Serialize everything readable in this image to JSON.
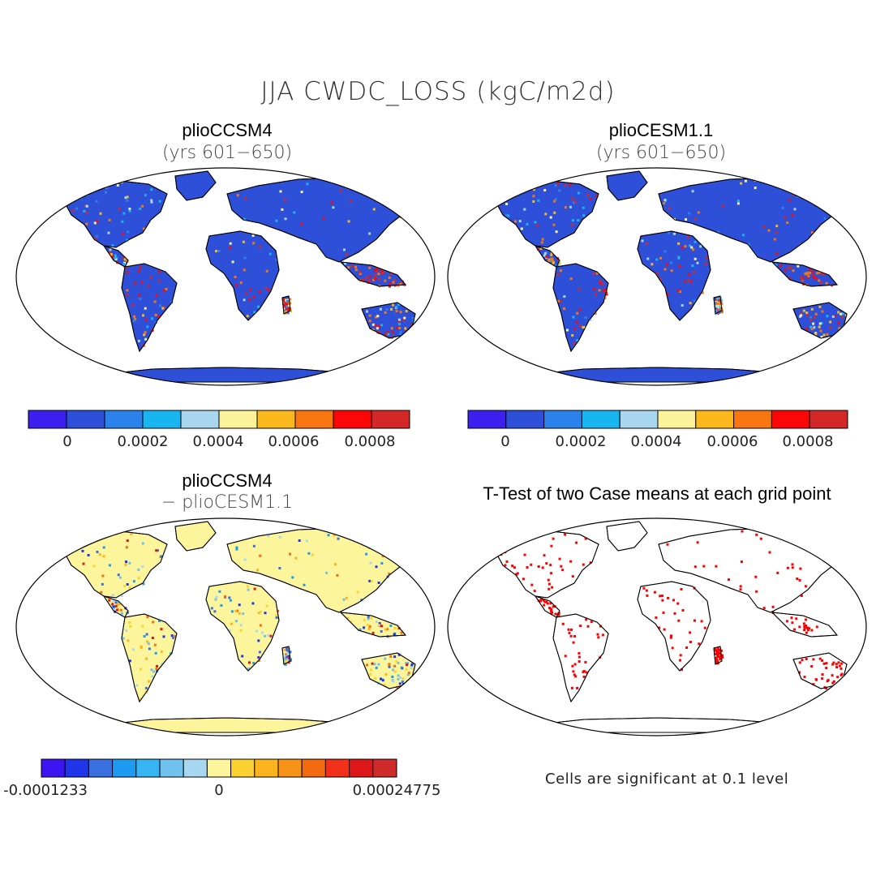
{
  "title": "JJA CWDC_LOSS (kgC/m2d)",
  "panels": {
    "a": {
      "title": "plioCCSM4",
      "subtitle": "(yrs 601−650)"
    },
    "b": {
      "title": "plioCESM1.1",
      "subtitle": "(yrs 601−650)"
    },
    "c": {
      "title": "plioCCSM4",
      "subtitle": "− plioCESM1.1"
    },
    "d": {
      "title": "T-Test of two Case means at each grid point"
    }
  },
  "colorbar_abs": {
    "colors": [
      "#3d1ff0",
      "#2e4fd8",
      "#2b82ea",
      "#17b6f0",
      "#a7d6ee",
      "#fbf29a",
      "#fbb81c",
      "#f7760f",
      "#fb0707",
      "#d42828"
    ],
    "ticks": [
      "0",
      "0.0002",
      "0.0004",
      "0.0006",
      "0.0008"
    ]
  },
  "colorbar_diff": {
    "colors": [
      "#3b16f2",
      "#1f35ea",
      "#3a6fe0",
      "#1d9bf0",
      "#37b5f2",
      "#6fc2ee",
      "#a8d8ef",
      "#fdf59c",
      "#fcd233",
      "#fbb41e",
      "#f79418",
      "#f46a10",
      "#f1311a",
      "#dd1717",
      "#cf2b2b"
    ],
    "ticks": [
      "-0.0001233",
      "0",
      "0.00024775"
    ]
  },
  "significance_note": "Cells are significant at 0.1 level",
  "palette": {
    "ocean": "#ffffff",
    "land_low": "#2e4fd8",
    "hot": "#d42828",
    "sig": "#ff0000",
    "diff_zero": "#fdf59c"
  }
}
